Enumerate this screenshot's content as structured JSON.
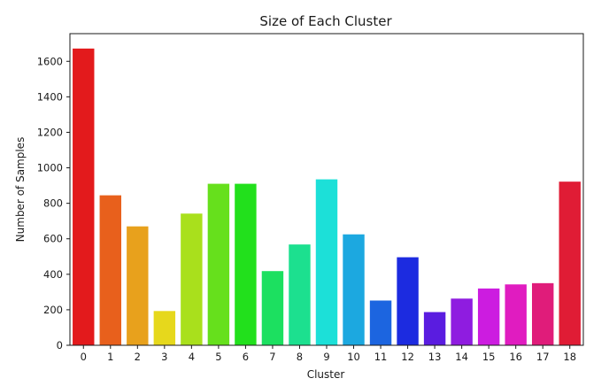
{
  "chart_data": {
    "type": "bar",
    "title": "Size of Each Cluster",
    "xlabel": "Cluster",
    "ylabel": "Number of Samples",
    "categories": [
      "0",
      "1",
      "2",
      "3",
      "4",
      "5",
      "6",
      "7",
      "8",
      "9",
      "10",
      "11",
      "12",
      "13",
      "14",
      "15",
      "16",
      "17",
      "18"
    ],
    "values": [
      1672,
      845,
      670,
      193,
      742,
      910,
      910,
      418,
      568,
      935,
      625,
      252,
      496,
      187,
      263,
      320,
      343,
      350,
      922
    ],
    "colors": [
      "#e31a1c",
      "#e8601c",
      "#e8a11c",
      "#e6d81c",
      "#a9e01c",
      "#66e01c",
      "#22e01c",
      "#1ce060",
      "#1ce08f",
      "#1ce0d8",
      "#1ca8e0",
      "#1c65e0",
      "#1c2be0",
      "#5a1ce0",
      "#8f1ce0",
      "#cc1ce0",
      "#e01cc0",
      "#e01c7a",
      "#e01c35"
    ],
    "yticks": [
      0,
      200,
      400,
      600,
      800,
      1000,
      1200,
      1400,
      1600
    ],
    "ylim": [
      0,
      1756
    ],
    "grid": false,
    "legend": "none"
  }
}
